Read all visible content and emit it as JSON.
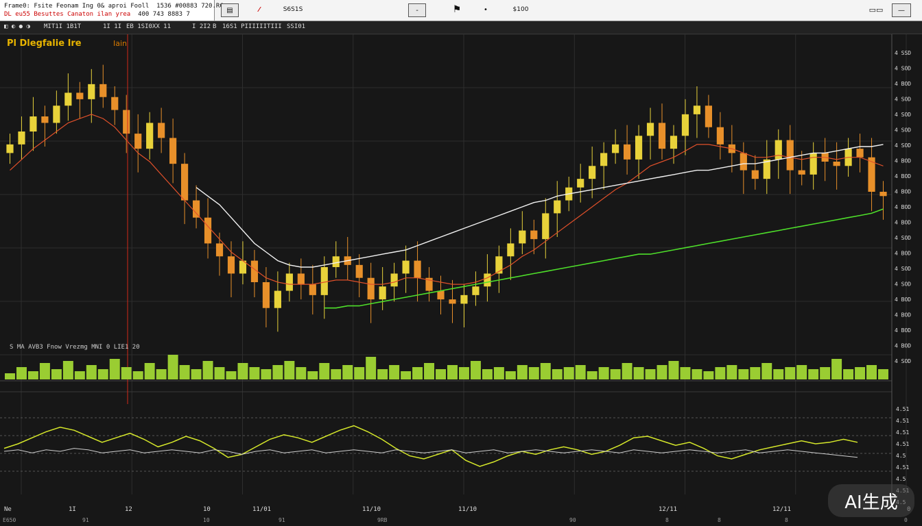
{
  "toolbar": {
    "info_line1": "Frame0: Fsite Feonam Ing 0& aproi Fooll",
    "info_line1b": "1536 #00883 720.RC",
    "info_line2": "DL eu55 Besuttes Canaton ilan yrea",
    "info_line2b": "400 743 8883 7",
    "btn_indicator": "▤",
    "btn_draw": "⁄",
    "code": "S6S1S",
    "btn_minus": "-",
    "btn_flag": "⚑",
    "btn_dot": "•",
    "btn_price": "$100",
    "btn_layout": "▭▭",
    "btn_close": "—"
  },
  "toolrow": {
    "a": "◧ ◐ ● ◑",
    "b": "MIT1I 1B1T",
    "c": "1I 1I",
    "d": "EB 1SI0XX 11",
    "e": "I 2I2",
    "f": "B",
    "g": "16S1 PIIIIIITIII",
    "h": "SSI01"
  },
  "colors": {
    "up": "#e8d23a",
    "down": "#e8902a",
    "ma_white": "#f2f2f2",
    "ma_red": "#e0502a",
    "ma_green": "#4ee02a",
    "volume": "#9acd32",
    "osc_main": "#d6e82a",
    "osc_sig": "#d0d0d0"
  },
  "chart_data": {
    "type": "line",
    "title": "Pl Dlegfalie Ire",
    "subtitle": "Iain",
    "xlabel": "",
    "ylabel": "",
    "x_ticks": [
      "Ne",
      "1I",
      "12",
      "10",
      "11/01",
      "11/10",
      "11/10",
      "12/11",
      "12/11",
      "0"
    ],
    "x_ticks_lower": [
      "E650",
      "91",
      "10",
      "91",
      "",
      "9RB",
      "90",
      "8",
      "8",
      "8",
      "0"
    ],
    "y_ticks": [
      "4 SSD",
      "4 SOD",
      "4 BOD",
      "4 SOD",
      "4 SOD",
      "4 SOD",
      "4 SOD",
      "4 BOD",
      "4 BOD",
      "4 BOD",
      "4 BOD",
      "4 BOD",
      "4 SOD",
      "4 BOD",
      "4 SOD",
      "4 SOD",
      "4 BOD",
      "4 BOD",
      "4 BOD",
      "4 BOD",
      "4 SOD"
    ],
    "osc_y_ticks": [
      "4.51",
      "4.51",
      "4.51",
      "4.51",
      "4.5",
      "4.51",
      "4.5",
      "4.51",
      "4.5"
    ],
    "price_close": [
      4.12,
      4.18,
      4.25,
      4.22,
      4.3,
      4.36,
      4.33,
      4.4,
      4.34,
      4.28,
      4.17,
      4.1,
      4.22,
      4.15,
      4.03,
      3.86,
      3.78,
      3.66,
      3.6,
      3.52,
      3.58,
      3.48,
      3.36,
      3.44,
      3.52,
      3.47,
      3.42,
      3.55,
      3.6,
      3.56,
      3.5,
      3.4,
      3.46,
      3.52,
      3.58,
      3.5,
      3.44,
      3.4,
      3.38,
      3.42,
      3.46,
      3.52,
      3.6,
      3.66,
      3.72,
      3.68,
      3.8,
      3.86,
      3.92,
      3.96,
      4.02,
      4.08,
      4.12,
      4.05,
      4.16,
      4.22,
      4.1,
      4.16,
      4.26,
      4.3,
      4.2,
      4.12,
      4.08,
      4.0,
      3.96,
      4.05,
      4.14,
      4.0,
      3.98,
      4.08,
      4.04,
      4.02,
      4.1,
      4.06,
      3.9,
      3.88
    ],
    "ma_white": [
      null,
      null,
      null,
      null,
      null,
      null,
      null,
      null,
      null,
      null,
      null,
      null,
      null,
      null,
      null,
      null,
      3.92,
      3.88,
      3.84,
      3.78,
      3.72,
      3.66,
      3.62,
      3.58,
      3.56,
      3.55,
      3.55,
      3.56,
      3.57,
      3.58,
      3.59,
      3.6,
      3.61,
      3.62,
      3.63,
      3.65,
      3.67,
      3.69,
      3.71,
      3.73,
      3.75,
      3.77,
      3.79,
      3.81,
      3.83,
      3.85,
      3.86,
      3.88,
      3.89,
      3.9,
      3.91,
      3.92,
      3.93,
      3.94,
      3.95,
      3.96,
      3.97,
      3.98,
      3.99,
      4.0,
      4.0,
      4.01,
      4.02,
      4.03,
      4.03,
      4.04,
      4.05,
      4.06,
      4.07,
      4.08,
      4.08,
      4.09,
      4.1,
      4.11,
      4.11,
      4.12
    ],
    "ma_red": [
      4.0,
      4.05,
      4.1,
      4.14,
      4.18,
      4.22,
      4.24,
      4.26,
      4.24,
      4.2,
      4.14,
      4.08,
      4.04,
      3.98,
      3.92,
      3.86,
      3.8,
      3.74,
      3.68,
      3.62,
      3.58,
      3.54,
      3.5,
      3.48,
      3.47,
      3.47,
      3.47,
      3.48,
      3.49,
      3.49,
      3.48,
      3.47,
      3.47,
      3.48,
      3.5,
      3.5,
      3.49,
      3.48,
      3.47,
      3.47,
      3.48,
      3.5,
      3.53,
      3.56,
      3.6,
      3.63,
      3.67,
      3.71,
      3.75,
      3.79,
      3.83,
      3.87,
      3.91,
      3.94,
      3.98,
      4.02,
      4.04,
      4.06,
      4.09,
      4.12,
      4.12,
      4.11,
      4.1,
      4.08,
      4.06,
      4.06,
      4.07,
      4.06,
      4.05,
      4.06,
      4.06,
      4.05,
      4.06,
      4.06,
      4.04,
      4.02
    ],
    "ma_green": [
      null,
      null,
      null,
      null,
      null,
      null,
      null,
      null,
      null,
      null,
      null,
      null,
      null,
      null,
      null,
      null,
      null,
      null,
      null,
      null,
      null,
      null,
      null,
      null,
      null,
      null,
      null,
      3.36,
      3.36,
      3.37,
      3.37,
      3.38,
      3.39,
      3.4,
      3.41,
      3.42,
      3.43,
      3.44,
      3.45,
      3.46,
      3.47,
      3.48,
      3.49,
      3.5,
      3.51,
      3.52,
      3.53,
      3.54,
      3.55,
      3.56,
      3.57,
      3.58,
      3.59,
      3.6,
      3.61,
      3.61,
      3.62,
      3.63,
      3.64,
      3.65,
      3.66,
      3.67,
      3.68,
      3.69,
      3.7,
      3.71,
      3.72,
      3.73,
      3.74,
      3.75,
      3.76,
      3.77,
      3.78,
      3.79,
      3.8,
      3.82
    ],
    "volume": [
      3,
      6,
      4,
      8,
      5,
      9,
      4,
      7,
      5,
      10,
      6,
      4,
      8,
      5,
      12,
      7,
      5,
      9,
      6,
      4,
      8,
      6,
      5,
      7,
      9,
      6,
      4,
      8,
      5,
      7,
      6,
      11,
      5,
      7,
      4,
      6,
      8,
      5,
      7,
      6,
      9,
      5,
      6,
      4,
      7,
      6,
      8,
      5,
      6,
      7,
      4,
      6,
      5,
      8,
      6,
      5,
      7,
      9,
      6,
      5,
      4,
      6,
      7,
      5,
      6,
      8,
      5,
      6,
      7,
      5,
      6,
      10,
      5,
      6,
      7,
      5
    ],
    "osc_main": [
      0.2,
      0.5,
      0.9,
      1.3,
      1.6,
      1.4,
      1.0,
      0.6,
      0.9,
      1.2,
      0.8,
      0.3,
      0.6,
      1.0,
      0.7,
      0.2,
      -0.4,
      -0.2,
      0.3,
      0.8,
      1.1,
      0.9,
      0.6,
      1.0,
      1.4,
      1.7,
      1.3,
      0.8,
      0.2,
      -0.3,
      -0.5,
      -0.2,
      0.1,
      -0.6,
      -1.0,
      -0.7,
      -0.3,
      0.0,
      -0.2,
      0.1,
      0.3,
      0.1,
      -0.2,
      0.0,
      0.4,
      0.9,
      1.0,
      0.7,
      0.4,
      0.6,
      0.2,
      -0.3,
      -0.5,
      -0.2,
      0.1,
      0.3,
      0.5,
      0.7,
      0.5,
      0.6,
      0.8,
      0.6
    ],
    "osc_sig": [
      0.0,
      0.1,
      -0.1,
      0.1,
      0.0,
      0.2,
      0.1,
      -0.1,
      0.0,
      0.1,
      -0.1,
      0.0,
      0.1,
      0.0,
      -0.1,
      0.1,
      0.0,
      -0.2,
      0.0,
      0.1,
      -0.1,
      0.0,
      0.1,
      -0.1,
      0.0,
      0.1,
      0.0,
      -0.1,
      0.1,
      0.0,
      -0.1,
      0.0,
      0.1,
      -0.1,
      0.0,
      0.1,
      -0.1,
      0.0,
      0.1,
      0.0,
      -0.1,
      0.0,
      0.1,
      0.0,
      -0.1,
      0.1,
      0.0,
      -0.1,
      0.0,
      0.1,
      0.0,
      -0.1,
      0.0,
      0.1,
      -0.1,
      0.0,
      0.1,
      0.0,
      -0.1,
      -0.2,
      -0.3,
      -0.4
    ],
    "ylim": [
      3.2,
      4.6
    ],
    "grid": true,
    "legend_position": "top-left"
  },
  "volume_label": "S MA AVB3 Fnow Vrezmg MNI 0 LIE1 20",
  "badge": "AI生成"
}
